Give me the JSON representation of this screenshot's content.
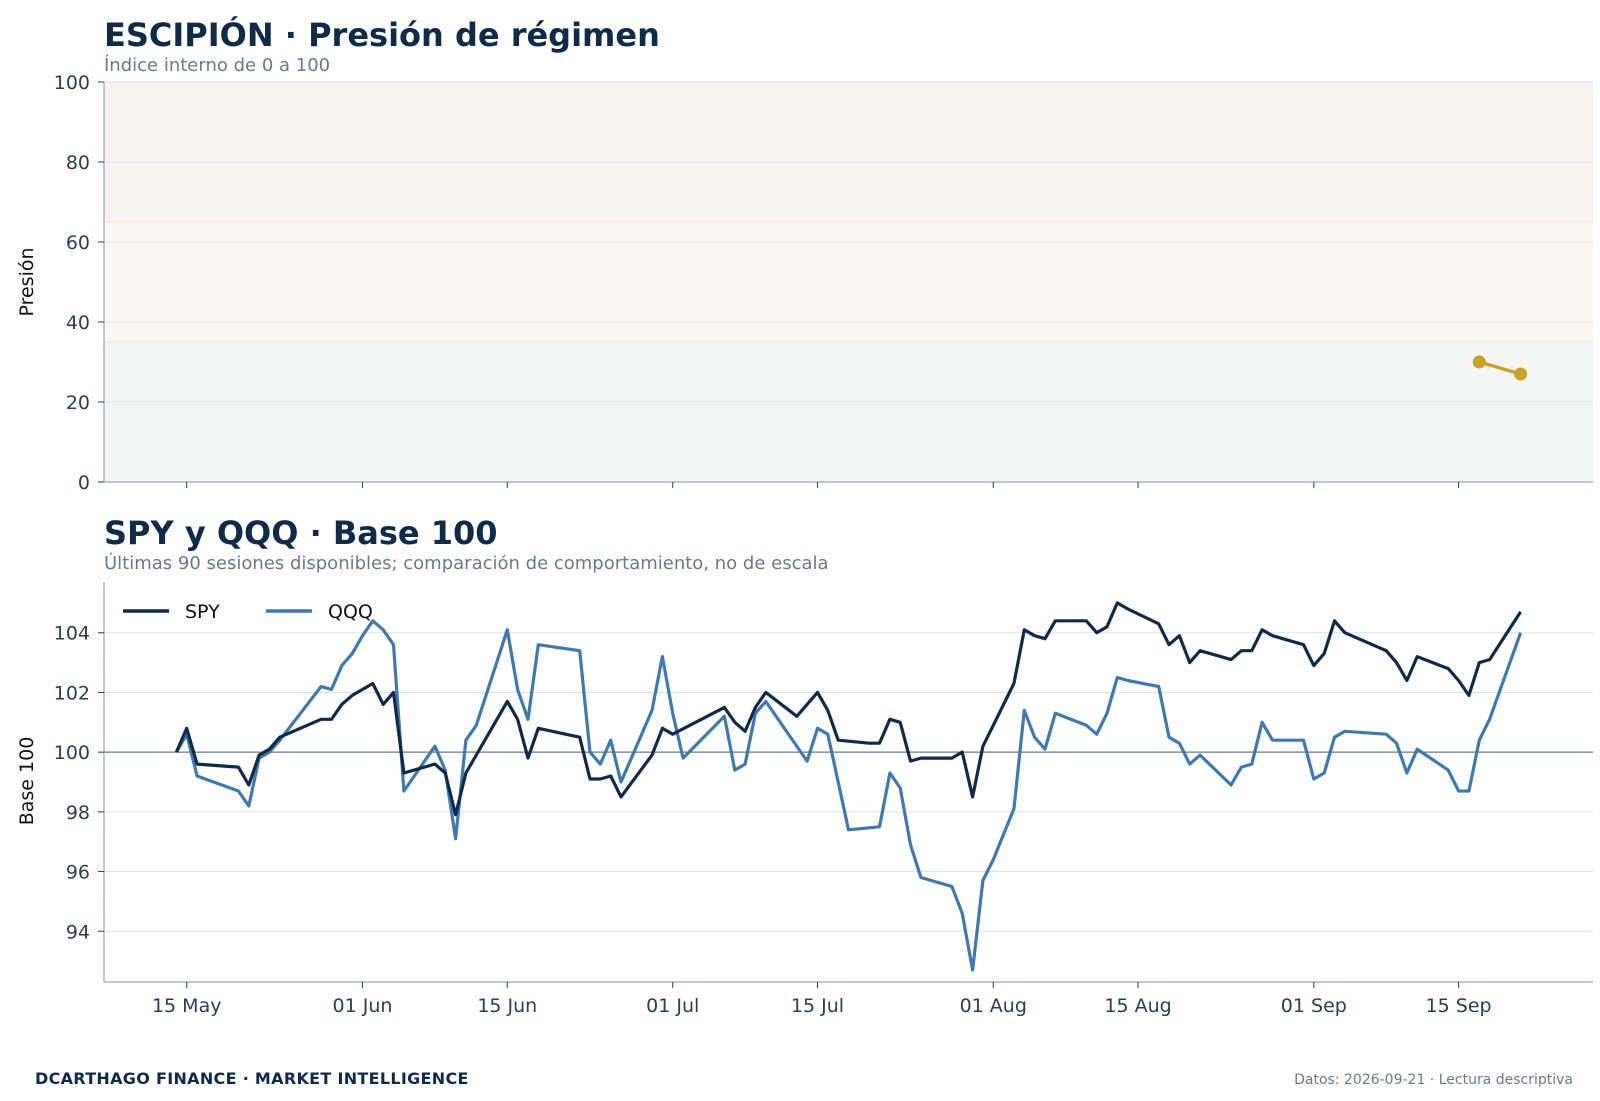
{
  "footer": {
    "brand": "DCARTHAGO FINANCE · MARKET INTELLIGENCE",
    "note": "Datos: 2026-09-21 · Lectura descriptiva"
  },
  "colors": {
    "navy": "#102a47",
    "blue": "#3f79ad",
    "gold": "#c9a22b",
    "zone_high": "#f8f3f3",
    "zone_mid": "#faf8f0",
    "zone_low": "#f3f6f5"
  },
  "chart_data": [
    {
      "type": "line",
      "title": "ESCIPIÓN · Presión de régimen",
      "subtitle": "Índice interno de 0 a 100",
      "ylabel": "Presión",
      "ylim": [
        0,
        100
      ],
      "yticks": [
        0,
        20,
        40,
        60,
        80,
        100
      ],
      "xlim": [
        "2026-05-07",
        "2026-09-28"
      ],
      "bands": [
        {
          "from": 0,
          "to": 35,
          "color": "#f3f6f5"
        },
        {
          "from": 35,
          "to": 65,
          "color": "#faf8f0"
        },
        {
          "from": 65,
          "to": 100,
          "color": "#f8f3f3"
        }
      ],
      "series": [
        {
          "color": "#c9a22b",
          "points": [
            [
              "2026-09-17",
              30
            ],
            [
              "2026-09-21",
              27
            ]
          ]
        }
      ],
      "grid": true
    },
    {
      "type": "line",
      "title": "SPY y QQQ · Base 100",
      "subtitle": "Últimas 90 sesiones disponibles; comparación de comportamiento, no de escala",
      "ylabel": "Base 100",
      "ylim": [
        92.3,
        105.7
      ],
      "yticks": [
        94,
        96,
        98,
        100,
        102,
        104
      ],
      "xlim": [
        "2026-05-07",
        "2026-09-28"
      ],
      "xticks": [
        {
          "date": "2026-05-15",
          "label": "15 May"
        },
        {
          "date": "2026-06-01",
          "label": "01 Jun"
        },
        {
          "date": "2026-06-15",
          "label": "15 Jun"
        },
        {
          "date": "2026-07-01",
          "label": "01 Jul"
        },
        {
          "date": "2026-07-15",
          "label": "15 Jul"
        },
        {
          "date": "2026-08-01",
          "label": "01 Aug"
        },
        {
          "date": "2026-08-15",
          "label": "15 Aug"
        },
        {
          "date": "2026-09-01",
          "label": "01 Sep"
        },
        {
          "date": "2026-09-15",
          "label": "15 Sep"
        }
      ],
      "baseline": 100,
      "legend": "top-left",
      "grid": true,
      "series": [
        {
          "name": "SPY",
          "color": "#102a47",
          "points": [
            [
              "2026-05-14",
              100.0
            ],
            [
              "2026-05-15",
              100.8
            ],
            [
              "2026-05-16",
              99.6
            ],
            [
              "2026-05-20",
              99.5
            ],
            [
              "2026-05-21",
              98.9
            ],
            [
              "2026-05-22",
              99.9
            ],
            [
              "2026-05-23",
              100.1
            ],
            [
              "2026-05-24",
              100.5
            ],
            [
              "2026-05-28",
              101.1
            ],
            [
              "2026-05-29",
              101.1
            ],
            [
              "2026-05-30",
              101.6
            ],
            [
              "2026-05-31",
              101.9
            ],
            [
              "2026-06-02",
              102.3
            ],
            [
              "2026-06-03",
              101.6
            ],
            [
              "2026-06-04",
              102.0
            ],
            [
              "2026-06-05",
              99.3
            ],
            [
              "2026-06-08",
              99.6
            ],
            [
              "2026-06-09",
              99.3
            ],
            [
              "2026-06-10",
              97.9
            ],
            [
              "2026-06-11",
              99.3
            ],
            [
              "2026-06-15",
              101.7
            ],
            [
              "2026-06-16",
              101.1
            ],
            [
              "2026-06-17",
              99.8
            ],
            [
              "2026-06-18",
              100.8
            ],
            [
              "2026-06-22",
              100.5
            ],
            [
              "2026-06-23",
              99.1
            ],
            [
              "2026-06-24",
              99.1
            ],
            [
              "2026-06-25",
              99.2
            ],
            [
              "2026-06-26",
              98.5
            ],
            [
              "2026-06-29",
              99.9
            ],
            [
              "2026-06-30",
              100.8
            ],
            [
              "2026-07-01",
              100.6
            ],
            [
              "2026-07-06",
              101.5
            ],
            [
              "2026-07-07",
              101.0
            ],
            [
              "2026-07-08",
              100.7
            ],
            [
              "2026-07-09",
              101.5
            ],
            [
              "2026-07-10",
              102.0
            ],
            [
              "2026-07-13",
              101.2
            ],
            [
              "2026-07-15",
              102.0
            ],
            [
              "2026-07-16",
              101.4
            ],
            [
              "2026-07-17",
              100.4
            ],
            [
              "2026-07-20",
              100.3
            ],
            [
              "2026-07-21",
              100.3
            ],
            [
              "2026-07-22",
              101.1
            ],
            [
              "2026-07-23",
              101.0
            ],
            [
              "2026-07-24",
              99.7
            ],
            [
              "2026-07-25",
              99.8
            ],
            [
              "2026-07-28",
              99.8
            ],
            [
              "2026-07-29",
              100.0
            ],
            [
              "2026-07-30",
              98.5
            ],
            [
              "2026-07-31",
              100.2
            ],
            [
              "2026-08-01",
              100.9
            ],
            [
              "2026-08-03",
              102.3
            ],
            [
              "2026-08-04",
              104.1
            ],
            [
              "2026-08-05",
              103.9
            ],
            [
              "2026-08-06",
              103.8
            ],
            [
              "2026-08-07",
              104.4
            ],
            [
              "2026-08-10",
              104.4
            ],
            [
              "2026-08-11",
              104.0
            ],
            [
              "2026-08-12",
              104.2
            ],
            [
              "2026-08-13",
              105.0
            ],
            [
              "2026-08-14",
              104.8
            ],
            [
              "2026-08-17",
              104.3
            ],
            [
              "2026-08-18",
              103.6
            ],
            [
              "2026-08-19",
              103.9
            ],
            [
              "2026-08-20",
              103.0
            ],
            [
              "2026-08-21",
              103.4
            ],
            [
              "2026-08-24",
              103.1
            ],
            [
              "2026-08-25",
              103.4
            ],
            [
              "2026-08-26",
              103.4
            ],
            [
              "2026-08-27",
              104.1
            ],
            [
              "2026-08-28",
              103.9
            ],
            [
              "2026-08-31",
              103.6
            ],
            [
              "2026-09-01",
              102.9
            ],
            [
              "2026-09-02",
              103.3
            ],
            [
              "2026-09-03",
              104.4
            ],
            [
              "2026-09-04",
              104.0
            ],
            [
              "2026-09-08",
              103.4
            ],
            [
              "2026-09-09",
              103.0
            ],
            [
              "2026-09-10",
              102.4
            ],
            [
              "2026-09-11",
              103.2
            ],
            [
              "2026-09-14",
              102.8
            ],
            [
              "2026-09-15",
              102.4
            ],
            [
              "2026-09-16",
              101.9
            ],
            [
              "2026-09-17",
              103.0
            ],
            [
              "2026-09-18",
              103.1
            ],
            [
              "2026-09-21",
              104.7
            ]
          ]
        },
        {
          "name": "QQQ",
          "color": "#3f79ad",
          "points": [
            [
              "2026-05-14",
              100.0
            ],
            [
              "2026-05-15",
              100.6
            ],
            [
              "2026-05-16",
              99.2
            ],
            [
              "2026-05-20",
              98.7
            ],
            [
              "2026-05-21",
              98.2
            ],
            [
              "2026-05-22",
              99.8
            ],
            [
              "2026-05-23",
              100.0
            ],
            [
              "2026-05-24",
              100.4
            ],
            [
              "2026-05-28",
              102.2
            ],
            [
              "2026-05-29",
              102.1
            ],
            [
              "2026-05-30",
              102.9
            ],
            [
              "2026-05-31",
              103.3
            ],
            [
              "2026-06-01",
              103.9
            ],
            [
              "2026-06-02",
              104.4
            ],
            [
              "2026-06-03",
              104.1
            ],
            [
              "2026-06-04",
              103.6
            ],
            [
              "2026-06-05",
              98.7
            ],
            [
              "2026-06-08",
              100.2
            ],
            [
              "2026-06-09",
              99.4
            ],
            [
              "2026-06-10",
              97.1
            ],
            [
              "2026-06-11",
              100.4
            ],
            [
              "2026-06-12",
              100.9
            ],
            [
              "2026-06-15",
              104.1
            ],
            [
              "2026-06-16",
              102.1
            ],
            [
              "2026-06-17",
              101.1
            ],
            [
              "2026-06-18",
              103.6
            ],
            [
              "2026-06-22",
              103.4
            ],
            [
              "2026-06-23",
              100.0
            ],
            [
              "2026-06-24",
              99.6
            ],
            [
              "2026-06-25",
              100.4
            ],
            [
              "2026-06-26",
              99.0
            ],
            [
              "2026-06-29",
              101.4
            ],
            [
              "2026-06-30",
              103.2
            ],
            [
              "2026-07-01",
              101.3
            ],
            [
              "2026-07-02",
              99.8
            ],
            [
              "2026-07-06",
              101.2
            ],
            [
              "2026-07-07",
              99.4
            ],
            [
              "2026-07-08",
              99.6
            ],
            [
              "2026-07-09",
              101.3
            ],
            [
              "2026-07-10",
              101.7
            ],
            [
              "2026-07-14",
              99.7
            ],
            [
              "2026-07-15",
              100.8
            ],
            [
              "2026-07-16",
              100.6
            ],
            [
              "2026-07-17",
              99.0
            ],
            [
              "2026-07-18",
              97.4
            ],
            [
              "2026-07-21",
              97.5
            ],
            [
              "2026-07-22",
              99.3
            ],
            [
              "2026-07-23",
              98.8
            ],
            [
              "2026-07-24",
              96.9
            ],
            [
              "2026-07-25",
              95.8
            ],
            [
              "2026-07-28",
              95.5
            ],
            [
              "2026-07-29",
              94.6
            ],
            [
              "2026-07-30",
              92.7
            ],
            [
              "2026-07-31",
              95.7
            ],
            [
              "2026-08-01",
              96.4
            ],
            [
              "2026-08-03",
              98.1
            ],
            [
              "2026-08-04",
              101.4
            ],
            [
              "2026-08-05",
              100.5
            ],
            [
              "2026-08-06",
              100.1
            ],
            [
              "2026-08-07",
              101.3
            ],
            [
              "2026-08-10",
              100.9
            ],
            [
              "2026-08-11",
              100.6
            ],
            [
              "2026-08-12",
              101.3
            ],
            [
              "2026-08-13",
              102.5
            ],
            [
              "2026-08-14",
              102.4
            ],
            [
              "2026-08-17",
              102.2
            ],
            [
              "2026-08-18",
              100.5
            ],
            [
              "2026-08-19",
              100.3
            ],
            [
              "2026-08-20",
              99.6
            ],
            [
              "2026-08-21",
              99.9
            ],
            [
              "2026-08-24",
              98.9
            ],
            [
              "2026-08-25",
              99.5
            ],
            [
              "2026-08-26",
              99.6
            ],
            [
              "2026-08-27",
              101.0
            ],
            [
              "2026-08-28",
              100.4
            ],
            [
              "2026-08-31",
              100.4
            ],
            [
              "2026-09-01",
              99.1
            ],
            [
              "2026-09-02",
              99.3
            ],
            [
              "2026-09-03",
              100.5
            ],
            [
              "2026-09-04",
              100.7
            ],
            [
              "2026-09-08",
              100.6
            ],
            [
              "2026-09-09",
              100.3
            ],
            [
              "2026-09-10",
              99.3
            ],
            [
              "2026-09-11",
              100.1
            ],
            [
              "2026-09-14",
              99.4
            ],
            [
              "2026-09-15",
              98.7
            ],
            [
              "2026-09-16",
              98.7
            ],
            [
              "2026-09-17",
              100.4
            ],
            [
              "2026-09-18",
              101.1
            ],
            [
              "2026-09-21",
              104.0
            ]
          ]
        }
      ]
    }
  ]
}
